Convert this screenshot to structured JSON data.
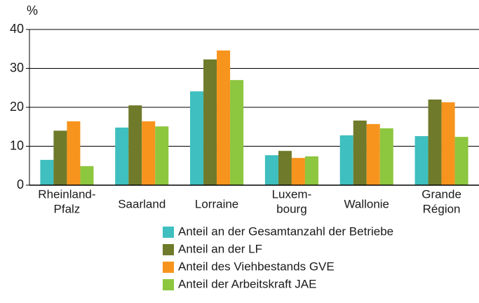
{
  "chart_data": {
    "type": "bar",
    "ylabel": "%",
    "categories": [
      [
        "Rheinland-",
        "Pfalz"
      ],
      [
        "Saarland"
      ],
      [
        "Lorraine"
      ],
      [
        "Luxem-",
        "bourg"
      ],
      [
        "Wallonie"
      ],
      [
        "Grande",
        "Région"
      ]
    ],
    "series": [
      {
        "name": "Anteil an der Gesamtanzahl der Betriebe",
        "color": "#3fbfbf",
        "values": [
          6.5,
          14.8,
          24.1,
          7.7,
          12.8,
          12.6
        ]
      },
      {
        "name": "Anteil an der LF",
        "color": "#6f7a2a",
        "values": [
          14,
          20.5,
          32.3,
          8.8,
          16.6,
          22.0
        ]
      },
      {
        "name": "Anteil des Viehbestands GVE",
        "color": "#f7941d",
        "values": [
          16.4,
          16.4,
          34.6,
          7.0,
          15.7,
          21.3
        ]
      },
      {
        "name": "Anteil der Arbeitskraft JAE",
        "color": "#8dc63f",
        "values": [
          4.9,
          15.1,
          27.0,
          7.4,
          14.6,
          12.4
        ]
      }
    ],
    "ylim": [
      0,
      40
    ],
    "yticks": [
      0,
      10,
      20,
      30,
      40
    ],
    "grid": true
  }
}
